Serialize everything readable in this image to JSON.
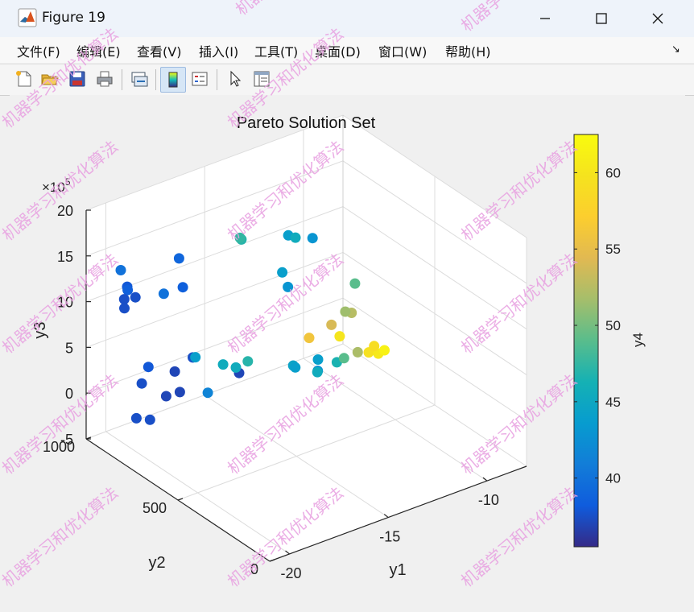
{
  "window": {
    "title": "Figure 19",
    "minimize_glyph": "—",
    "maximize_glyph": "☐",
    "close_glyph": "✕"
  },
  "menu": {
    "items": [
      "文件(F)",
      "编辑(E)",
      "查看(V)",
      "插入(I)",
      "工具(T)",
      "桌面(D)",
      "窗口(W)",
      "帮助(H)"
    ],
    "dock_glyph": "↘"
  },
  "toolbar": {
    "icons": [
      "new-figure-icon",
      "open-file-icon",
      "save-icon",
      "print-icon",
      "link-plot-icon",
      "colorbar-icon",
      "legend-icon",
      "edit-plot-cursor-icon",
      "property-inspector-icon"
    ]
  },
  "watermark": {
    "text": "机器学习和优化算法",
    "color": "#e8a0e0"
  },
  "chart_data": {
    "type": "scatter",
    "projection": "3d",
    "title": "Pareto Solution Set",
    "xlabel": "y1",
    "ylabel": "y2",
    "zlabel": "y3",
    "colorbar_label": "y4",
    "z_multiplier_label": "×10",
    "z_multiplier_exponent": "5",
    "xlim": [
      -21,
      -8
    ],
    "ylim": [
      0,
      1000
    ],
    "zlim": [
      -5,
      20
    ],
    "x_ticks": [
      -20,
      -15,
      -10
    ],
    "y_ticks": [
      0,
      500,
      1000
    ],
    "z_ticks": [
      -5,
      0,
      5,
      10,
      15,
      20
    ],
    "x_tick_labels": [
      "-20",
      "-15",
      "-10"
    ],
    "y_tick_labels": [
      "0",
      "500",
      "1000"
    ],
    "z_tick_labels": [
      "-5",
      "0",
      "5",
      "10",
      "15",
      "20"
    ],
    "colorbar_range": [
      35.5,
      62.5
    ],
    "colorbar_ticks": [
      40,
      45,
      50,
      55,
      60
    ],
    "colorbar_tick_labels": [
      "40",
      "45",
      "50",
      "55",
      "60"
    ],
    "colormap": "parula",
    "grid": true,
    "points": [
      {
        "x": -20.0,
        "y": 760,
        "z": -0.5,
        "c": 37.5
      },
      {
        "x": -20.5,
        "y": 780,
        "z": -0.2,
        "c": 37.5
      },
      {
        "x": -18.9,
        "y": 790,
        "z": 0.8,
        "c": 37.0
      },
      {
        "x": -19.3,
        "y": 880,
        "z": 1.3,
        "c": 37.5
      },
      {
        "x": -18.5,
        "y": 930,
        "z": 1.8,
        "c": 38.0
      },
      {
        "x": -18.3,
        "y": 780,
        "z": 0.9,
        "c": 37.0
      },
      {
        "x": -18.0,
        "y": 840,
        "z": 2.1,
        "c": 37.0
      },
      {
        "x": -16.9,
        "y": 860,
        "z": 2.5,
        "c": 37.5
      },
      {
        "x": -18.0,
        "y": 660,
        "z": 2.2,
        "c": 41.5
      },
      {
        "x": -16.6,
        "y": 640,
        "z": 3.5,
        "c": 37.0
      },
      {
        "x": -17.7,
        "y": 760,
        "z": 4.5,
        "c": 44.0
      },
      {
        "x": -17.6,
        "y": 620,
        "z": 5.5,
        "c": 45.5
      },
      {
        "x": -17.6,
        "y": 550,
        "z": 6.1,
        "c": 45.5
      },
      {
        "x": -17.0,
        "y": 550,
        "z": 6.3,
        "c": 47.0
      },
      {
        "x": -18.0,
        "y": 900,
        "z": 9.8,
        "c": 40.0
      },
      {
        "x": -14.7,
        "y": 550,
        "z": 4.0,
        "c": 44.5
      },
      {
        "x": -14.5,
        "y": 560,
        "z": 3.5,
        "c": 44.0
      },
      {
        "x": -14.2,
        "y": 470,
        "z": 4.1,
        "c": 42.5
      },
      {
        "x": -14.5,
        "y": 440,
        "z": 4.6,
        "c": 45.5
      },
      {
        "x": -14.0,
        "y": 490,
        "z": 4.9,
        "c": 44.0
      },
      {
        "x": -13.7,
        "y": 420,
        "z": 5.3,
        "c": 46.5
      },
      {
        "x": -13.8,
        "y": 370,
        "z": 6.5,
        "c": 49.0
      },
      {
        "x": -13.2,
        "y": 360,
        "z": 6.8,
        "c": 52.0
      },
      {
        "x": -14.5,
        "y": 160,
        "z": 10.5,
        "c": 59.5
      },
      {
        "x": -14.2,
        "y": 140,
        "z": 10.4,
        "c": 60.5
      },
      {
        "x": -13.8,
        "y": 150,
        "z": 10.3,
        "c": 61.5
      },
      {
        "x": -14.6,
        "y": 120,
        "z": 11.8,
        "c": 59.0
      },
      {
        "x": -15.6,
        "y": 200,
        "z": 12.6,
        "c": 60.0
      },
      {
        "x": -16.4,
        "y": 280,
        "z": 12.0,
        "c": 56.0
      },
      {
        "x": -16.2,
        "y": 180,
        "z": 14.6,
        "c": 54.0
      },
      {
        "x": -16.3,
        "y": 60,
        "z": 17.6,
        "c": 52.5
      },
      {
        "x": -16.8,
        "y": 40,
        "z": 18.4,
        "c": 51.5
      },
      {
        "x": -16.5,
        "y": 20,
        "z": 21.5,
        "c": 49.0
      },
      {
        "x": -18.8,
        "y": 710,
        "z": 13.7,
        "c": 38.5
      },
      {
        "x": -20.5,
        "y": 830,
        "z": 13.5,
        "c": 38.0
      },
      {
        "x": -19.9,
        "y": 930,
        "z": 13.5,
        "c": 40.0
      },
      {
        "x": -20.2,
        "y": 860,
        "z": 12.5,
        "c": 38.5
      },
      {
        "x": -19.9,
        "y": 850,
        "z": 11.6,
        "c": 37.5
      },
      {
        "x": -20.0,
        "y": 900,
        "z": 10.8,
        "c": 37.5
      },
      {
        "x": -19.9,
        "y": 910,
        "z": 9.6,
        "c": 37.5
      },
      {
        "x": -18.9,
        "y": 720,
        "z": 16.8,
        "c": 39.0
      },
      {
        "x": -17.3,
        "y": 330,
        "z": 19.2,
        "c": 44.0
      },
      {
        "x": -17.2,
        "y": 310,
        "z": 17.8,
        "c": 43.0
      },
      {
        "x": -17.6,
        "y": 520,
        "z": 20.5,
        "c": 47.0
      },
      {
        "x": -17.3,
        "y": 560,
        "z": 19.9,
        "c": 47.5
      },
      {
        "x": -16.9,
        "y": 340,
        "z": 22.8,
        "c": 44.0
      },
      {
        "x": -17.0,
        "y": 290,
        "z": 23.3,
        "c": 45.5
      },
      {
        "x": -16.6,
        "y": 240,
        "z": 23.6,
        "c": 43.0
      }
    ]
  }
}
